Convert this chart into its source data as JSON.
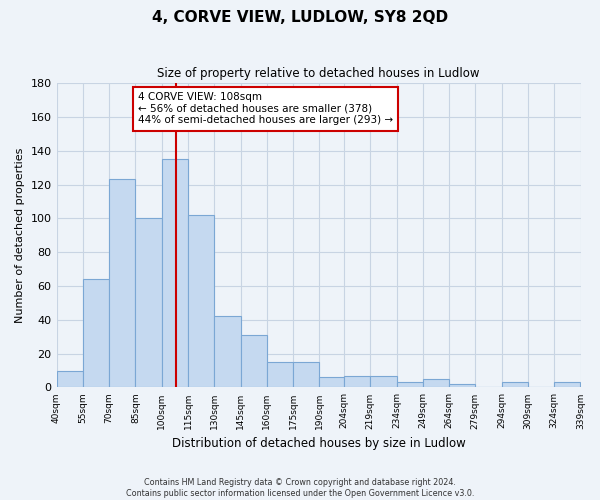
{
  "title": "4, CORVE VIEW, LUDLOW, SY8 2QD",
  "subtitle": "Size of property relative to detached houses in Ludlow",
  "xlabel": "Distribution of detached houses by size in Ludlow",
  "ylabel": "Number of detached properties",
  "bar_labels": [
    "40sqm",
    "55sqm",
    "70sqm",
    "85sqm",
    "100sqm",
    "115sqm",
    "130sqm",
    "145sqm",
    "160sqm",
    "175sqm",
    "190sqm",
    "204sqm",
    "219sqm",
    "234sqm",
    "249sqm",
    "264sqm",
    "279sqm",
    "294sqm",
    "309sqm",
    "324sqm",
    "339sqm"
  ],
  "bar_values": [
    10,
    64,
    123,
    100,
    135,
    102,
    42,
    31,
    15,
    15,
    6,
    7,
    7,
    3,
    5,
    2,
    0,
    3,
    0,
    3
  ],
  "bar_left_edges": [
    40,
    55,
    70,
    85,
    100,
    115,
    130,
    145,
    160,
    175,
    190,
    204,
    219,
    234,
    249,
    264,
    279,
    294,
    309,
    324
  ],
  "bar_widths": [
    15,
    15,
    15,
    15,
    15,
    15,
    15,
    15,
    15,
    15,
    14,
    15,
    15,
    15,
    15,
    15,
    15,
    15,
    15,
    15
  ],
  "xlim_right": 339,
  "bar_color": "#c5d9f0",
  "bar_edge_color": "#7ba7d4",
  "property_line_x": 108,
  "annotation_box_text": "4 CORVE VIEW: 108sqm\n← 56% of detached houses are smaller (378)\n44% of semi-detached houses are larger (293) →",
  "annotation_box_color": "#ffffff",
  "annotation_box_edge_color": "#cc0000",
  "annotation_line_color": "#cc0000",
  "ylim": [
    0,
    180
  ],
  "yticks": [
    0,
    20,
    40,
    60,
    80,
    100,
    120,
    140,
    160,
    180
  ],
  "grid_color": "#c8d4e3",
  "bg_color": "#eef3f9",
  "footer_line1": "Contains HM Land Registry data © Crown copyright and database right 2024.",
  "footer_line2": "Contains public sector information licensed under the Open Government Licence v3.0."
}
